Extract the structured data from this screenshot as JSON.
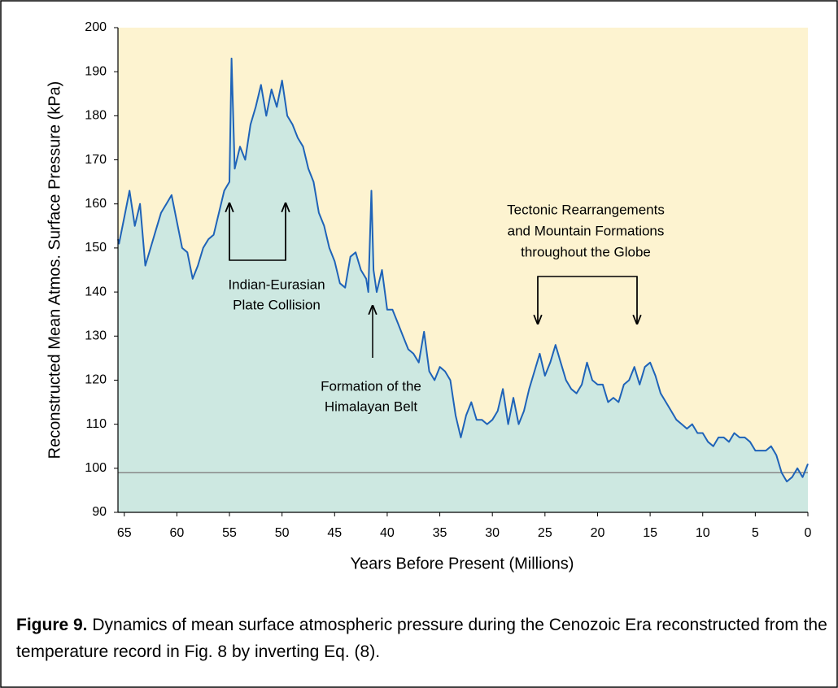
{
  "chart_data": {
    "type": "area",
    "x_label": "Years Before Present (Millions)",
    "y_label": "Reconstructed Mean Atmos. Surface Pressure (kPa)",
    "x": [
      65.6,
      65.5,
      65,
      64.5,
      64,
      63.5,
      63,
      62.5,
      62,
      61.5,
      61,
      60.5,
      60,
      59.5,
      59,
      58.5,
      58,
      57.5,
      57,
      56.5,
      56,
      55.5,
      55,
      54.8,
      54.5,
      54,
      53.5,
      53,
      52.5,
      52,
      51.5,
      51,
      50.5,
      50,
      49.5,
      49,
      48.5,
      48,
      47.5,
      47,
      46.5,
      46,
      45.5,
      45,
      44.5,
      44,
      43.5,
      43,
      42.5,
      42,
      41.8,
      41.5,
      41.3,
      41,
      40.5,
      40,
      39.5,
      39,
      38.5,
      38,
      37.5,
      37,
      36.5,
      36,
      35.5,
      35,
      34.5,
      34,
      33.5,
      33,
      32.5,
      32,
      31.5,
      31,
      30.5,
      30,
      29.5,
      29,
      28.5,
      28,
      27.5,
      27,
      26.5,
      26,
      25.5,
      25,
      24.5,
      24,
      23.5,
      23,
      22.5,
      22,
      21.5,
      21,
      20.5,
      20,
      19.5,
      19,
      18.5,
      18,
      17.5,
      17,
      16.5,
      16,
      15.5,
      15,
      14.5,
      14,
      13.5,
      13,
      12.5,
      12,
      11.5,
      11,
      10.5,
      10,
      9.5,
      9,
      8.5,
      8,
      7.5,
      7,
      6.5,
      6,
      5.5,
      5,
      4.5,
      4,
      3.5,
      3,
      2.5,
      2,
      1.5,
      1,
      0.5,
      0
    ],
    "series": [
      {
        "name": "Surface pressure",
        "color": "#1f63b8",
        "fill": "#cde8e1",
        "values": [
          152,
          151,
          157,
          163,
          155,
          160,
          146,
          150,
          154,
          158,
          160,
          162,
          156,
          150,
          149,
          143,
          146,
          150,
          152,
          153,
          158,
          163,
          165,
          193,
          168,
          173,
          170,
          178,
          182,
          187,
          180,
          186,
          182,
          188,
          180,
          178,
          175,
          173,
          168,
          165,
          158,
          155,
          150,
          147,
          142,
          141,
          148,
          149,
          145,
          143,
          140,
          163,
          145,
          140,
          145,
          136,
          136,
          133,
          130,
          127,
          126,
          124,
          131,
          122,
          120,
          123,
          122,
          120,
          112,
          107,
          112,
          115,
          111,
          111,
          110,
          111,
          113,
          118,
          110,
          116,
          110,
          113,
          118,
          122,
          126,
          121,
          124,
          128,
          124,
          120,
          118,
          117,
          119,
          124,
          120,
          119,
          119,
          115,
          116,
          115,
          119,
          120,
          123,
          119,
          123,
          124,
          121,
          117,
          115,
          113,
          111,
          110,
          109,
          110,
          108,
          108,
          106,
          105,
          107,
          107,
          106,
          108,
          107,
          107,
          106,
          104,
          104,
          104,
          105,
          103,
          99,
          97,
          98,
          100,
          98,
          101
        ]
      }
    ],
    "reference_line": 99,
    "xlim": [
      65.6,
      0
    ],
    "ylim": [
      90,
      200
    ],
    "xticks": [
      65,
      60,
      55,
      50,
      45,
      40,
      35,
      30,
      25,
      20,
      15,
      10,
      5,
      0
    ],
    "yticks": [
      90,
      100,
      110,
      120,
      130,
      140,
      150,
      160,
      170,
      180,
      190,
      200
    ],
    "background": "#fdf3d0",
    "annotations": [
      {
        "lines": [
          "Indian-Eurasian",
          "Plate Collision"
        ]
      },
      {
        "lines": [
          "Formation of the",
          "Himalayan Belt"
        ]
      },
      {
        "lines": [
          "Tectonic Rearrangements",
          "and Mountain Formations",
          "throughout the Globe"
        ]
      }
    ]
  },
  "caption": {
    "label": "Figure 9.",
    "text": "Dynamics of mean surface atmospheric pressure during the Cenozoic Era reconstructed from the temperature record in Fig. 8 by inverting Eq. (8)."
  }
}
